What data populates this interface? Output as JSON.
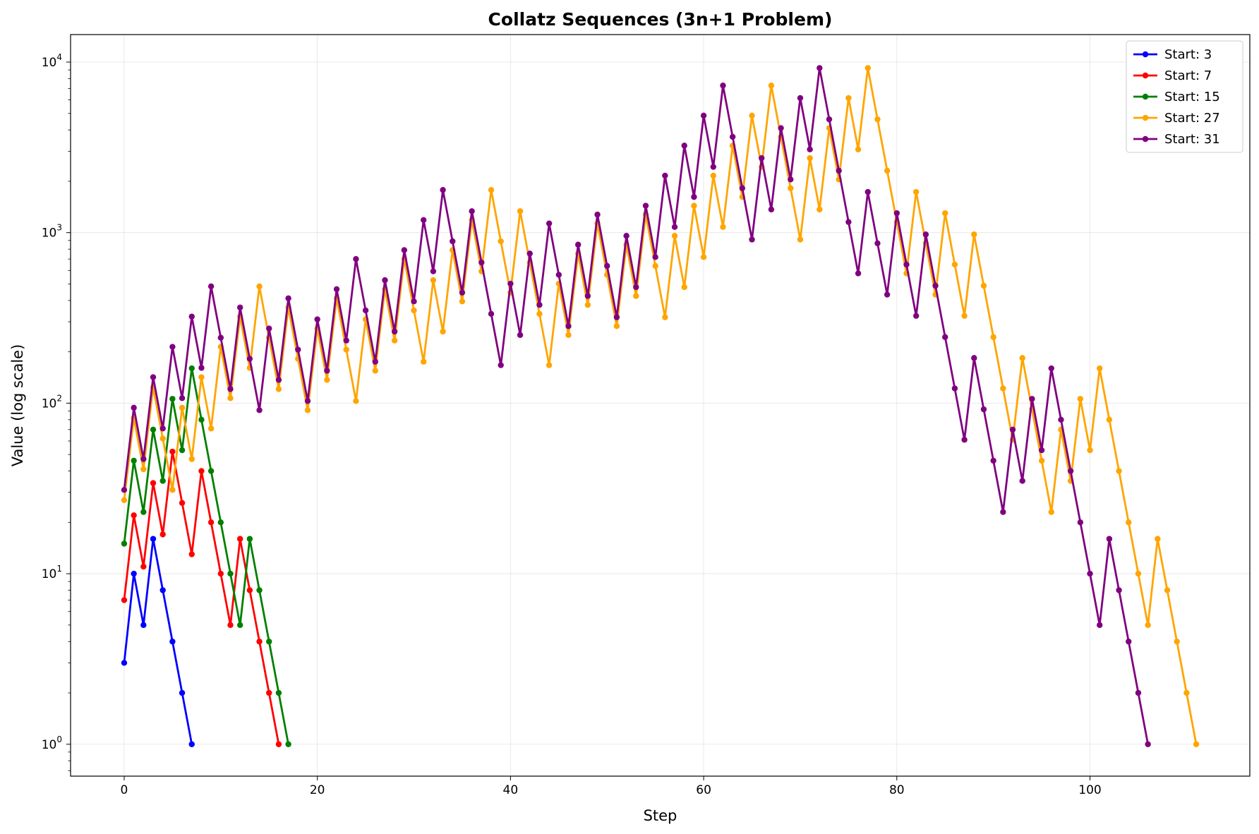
{
  "chart_data": {
    "type": "line",
    "title": "Collatz Sequences (3n+1 Problem)",
    "xlabel": "Step",
    "ylabel": "Value (log scale)",
    "yscale": "log",
    "xlim": [
      -5.55,
      116.55
    ],
    "ylim": [
      0.65,
      14500
    ],
    "xticks": [
      0,
      20,
      40,
      60,
      80,
      100
    ],
    "yticks": [
      1,
      10,
      100,
      1000,
      10000
    ],
    "ytick_labels": [
      {
        "base": "10",
        "exp": "0"
      },
      {
        "base": "10",
        "exp": "1"
      },
      {
        "base": "10",
        "exp": "2"
      },
      {
        "base": "10",
        "exp": "3"
      },
      {
        "base": "10",
        "exp": "4"
      }
    ],
    "grid": true,
    "legend_position": "top-right",
    "series": [
      {
        "name": "Start: 3",
        "color": "#0000ff",
        "values": [
          3,
          10,
          5,
          16,
          8,
          4,
          2,
          1
        ]
      },
      {
        "name": "Start: 7",
        "color": "#ff0000",
        "values": [
          7,
          22,
          11,
          34,
          17,
          52,
          26,
          13,
          40,
          20,
          10,
          5,
          16,
          8,
          4,
          2,
          1
        ]
      },
      {
        "name": "Start: 15",
        "color": "#008000",
        "values": [
          15,
          46,
          23,
          70,
          35,
          106,
          53,
          160,
          80,
          40,
          20,
          10,
          5,
          16,
          8,
          4,
          2,
          1
        ]
      },
      {
        "name": "Start: 27",
        "color": "#ffa500",
        "values": [
          27,
          82,
          41,
          124,
          62,
          31,
          94,
          47,
          142,
          71,
          214,
          107,
          322,
          161,
          484,
          242,
          121,
          364,
          182,
          91,
          274,
          137,
          412,
          206,
          103,
          310,
          155,
          466,
          233,
          700,
          350,
          175,
          526,
          263,
          790,
          395,
          1186,
          593,
          1780,
          890,
          445,
          1336,
          668,
          334,
          167,
          502,
          251,
          754,
          377,
          1132,
          566,
          283,
          850,
          425,
          1276,
          638,
          319,
          958,
          479,
          1438,
          719,
          2158,
          1079,
          3238,
          1619,
          4858,
          2429,
          7288,
          3644,
          1822,
          911,
          2734,
          1367,
          4102,
          2051,
          6154,
          3077,
          9232,
          4616,
          2308,
          1154,
          577,
          1732,
          866,
          433,
          1300,
          650,
          325,
          976,
          488,
          244,
          122,
          61,
          184,
          92,
          46,
          23,
          70,
          35,
          106,
          53,
          160,
          80,
          40,
          20,
          10,
          5,
          16,
          8,
          4,
          2,
          1
        ]
      },
      {
        "name": "Start: 31",
        "color": "#800080",
        "values": [
          31,
          94,
          47,
          142,
          71,
          214,
          107,
          322,
          161,
          484,
          242,
          121,
          364,
          182,
          91,
          274,
          137,
          412,
          206,
          103,
          310,
          155,
          466,
          233,
          700,
          350,
          175,
          526,
          263,
          790,
          395,
          1186,
          593,
          1780,
          890,
          445,
          1336,
          668,
          334,
          167,
          502,
          251,
          754,
          377,
          1132,
          566,
          283,
          850,
          425,
          1276,
          638,
          319,
          958,
          479,
          1438,
          719,
          2158,
          1079,
          3238,
          1619,
          4858,
          2429,
          7288,
          3644,
          1822,
          911,
          2734,
          1367,
          4102,
          2051,
          6154,
          3077,
          9232,
          4616,
          2308,
          1154,
          577,
          1732,
          866,
          433,
          1300,
          650,
          325,
          976,
          488,
          244,
          122,
          61,
          184,
          92,
          46,
          23,
          70,
          35,
          106,
          53,
          160,
          80,
          40,
          20,
          10,
          5,
          16,
          8,
          4,
          2,
          1
        ]
      }
    ]
  }
}
